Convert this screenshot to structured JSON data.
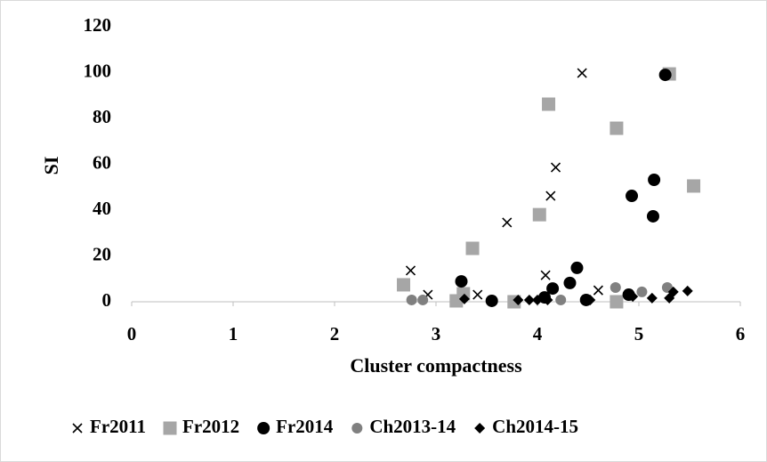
{
  "chart_data": {
    "type": "scatter",
    "x_label": "Cluster compactness",
    "y_label": "SI",
    "xlim": [
      0,
      6
    ],
    "xticks": [
      0,
      1,
      2,
      3,
      4,
      5,
      6
    ],
    "ylim": [
      0,
      120
    ],
    "yticks": [
      0,
      20,
      40,
      60,
      80,
      100,
      120
    ],
    "grid": false,
    "legend": "bottom",
    "series": [
      {
        "name": "Fr2011",
        "color": "#000000",
        "marker": "x",
        "x": [
          2.75,
          2.92,
          3.41,
          3.7,
          4.08,
          4.13,
          4.18,
          4.44,
          4.6
        ],
        "values": [
          13.6,
          3.1,
          3.1,
          34.6,
          11.6,
          46.2,
          58.6,
          99.8,
          5.0
        ]
      },
      {
        "name": "Fr2012",
        "color": "#a6a6a6",
        "marker": "square",
        "x": [
          2.68,
          3.2,
          3.27,
          3.36,
          3.77,
          4.02,
          4.11,
          4.78,
          4.78,
          5.3,
          5.54
        ],
        "values": [
          7.4,
          0.4,
          3.5,
          23.3,
          0,
          38.0,
          86.2,
          75.7,
          0,
          99.4,
          50.5
        ]
      },
      {
        "name": "Fr2014",
        "color": "#000000",
        "marker": "circle",
        "x": [
          3.25,
          3.55,
          4.07,
          4.15,
          4.32,
          4.39,
          4.48,
          4.9,
          4.93,
          5.15,
          5.14,
          5.26
        ],
        "values": [
          8.9,
          0.4,
          1.9,
          5.8,
          8.2,
          14.8,
          0.8,
          3.1,
          46.2,
          53.2,
          37.3,
          99.0
        ]
      },
      {
        "name": "Ch2013-14",
        "color": "#808080",
        "marker": "circle",
        "x": [
          2.76,
          2.87,
          4.23,
          4.77,
          5.03,
          5.28
        ],
        "values": [
          0.8,
          0.8,
          0.8,
          6.2,
          4.3,
          6.2
        ]
      },
      {
        "name": "Ch2014-15",
        "color": "#000000",
        "marker": "diamond",
        "x": [
          3.28,
          3.81,
          3.92,
          4.0,
          4.1,
          4.52,
          4.94,
          5.13,
          5.3,
          5.34,
          5.48
        ],
        "values": [
          1.2,
          0.8,
          0.8,
          0.8,
          0.8,
          0.8,
          2.3,
          1.6,
          1.6,
          4.3,
          4.7
        ]
      }
    ]
  }
}
